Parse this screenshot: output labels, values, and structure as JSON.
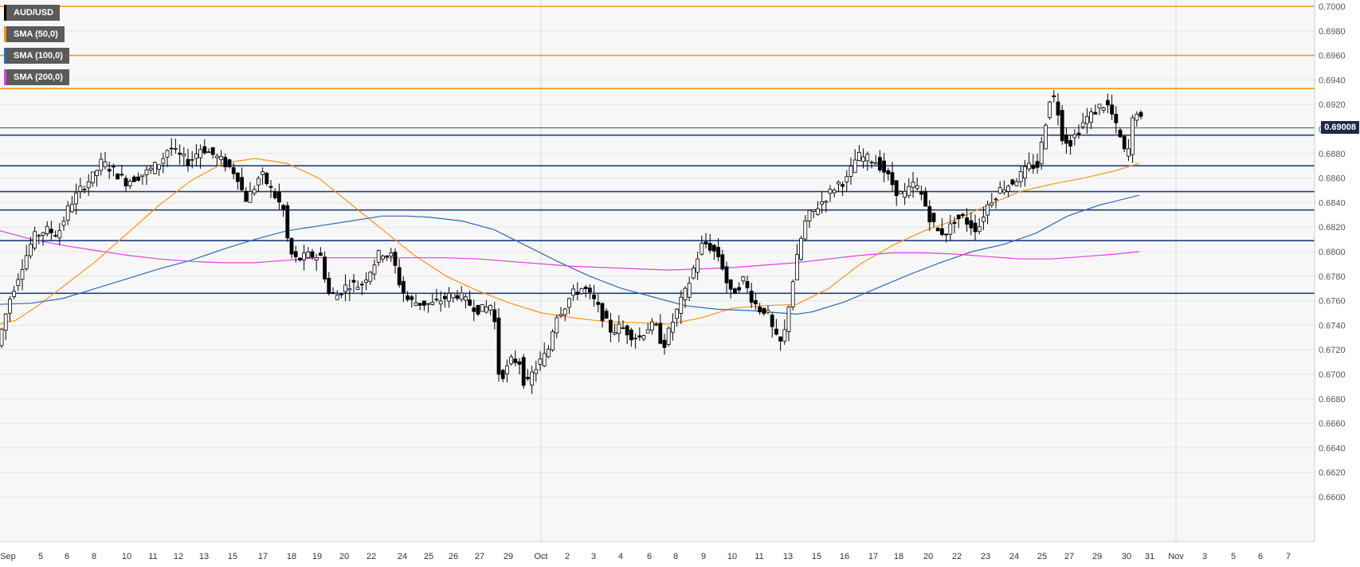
{
  "chart_data": {
    "type": "candlestick",
    "symbol": "AUD/USD",
    "last_price": "0.69008",
    "ylim": [
      0.6592,
      0.7004
    ],
    "y_ticks": [
      "0.7000",
      "0.6980",
      "0.6960",
      "0.6940",
      "0.6920",
      "0.6900",
      "0.6880",
      "0.6860",
      "0.6840",
      "0.6820",
      "0.6800",
      "0.6780",
      "0.6760",
      "0.6740",
      "0.6720",
      "0.6700",
      "0.6680",
      "0.6660",
      "0.6640",
      "0.6620",
      "0.6600"
    ],
    "x_ticks": [
      "Sep",
      "5",
      "6",
      "8",
      "10",
      "11",
      "12",
      "13",
      "15",
      "17",
      "18",
      "19",
      "20",
      "22",
      "24",
      "25",
      "26",
      "27",
      "29",
      "Oct",
      "2",
      "3",
      "4",
      "6",
      "8",
      "9",
      "10",
      "11",
      "13",
      "15",
      "16",
      "17",
      "18",
      "20",
      "22",
      "23",
      "24",
      "25",
      "27",
      "29",
      "30",
      "31",
      "Nov",
      "3",
      "5",
      "6",
      "7"
    ],
    "horizontal_levels": {
      "resistance": [
        0.7,
        0.696,
        0.6933
      ],
      "support": [
        0.6895,
        0.687,
        0.6849,
        0.6834,
        0.6809,
        0.6766
      ],
      "current": 0.6901
    },
    "series": [
      {
        "name": "SMA (50,0)",
        "color": "#f7941d",
        "points": [
          [
            0,
            0.6741
          ],
          [
            20,
            0.6744
          ],
          [
            50,
            0.6757
          ],
          [
            80,
            0.6772
          ],
          [
            120,
            0.6792
          ],
          [
            160,
            0.6815
          ],
          [
            200,
            0.6838
          ],
          [
            240,
            0.6858
          ],
          [
            280,
            0.6872
          ],
          [
            320,
            0.6876
          ],
          [
            360,
            0.6872
          ],
          [
            400,
            0.686
          ],
          [
            440,
            0.6839
          ],
          [
            480,
            0.6818
          ],
          [
            520,
            0.6797
          ],
          [
            560,
            0.678
          ],
          [
            600,
            0.6768
          ],
          [
            640,
            0.6758
          ],
          [
            680,
            0.675
          ],
          [
            720,
            0.6746
          ],
          [
            760,
            0.6743
          ],
          [
            800,
            0.6742
          ],
          [
            840,
            0.6741
          ],
          [
            880,
            0.6746
          ],
          [
            920,
            0.6754
          ],
          [
            960,
            0.6756
          ],
          [
            1000,
            0.6757
          ],
          [
            1040,
            0.677
          ],
          [
            1080,
            0.679
          ],
          [
            1120,
            0.6805
          ],
          [
            1160,
            0.6817
          ],
          [
            1200,
            0.6826
          ],
          [
            1240,
            0.6838
          ],
          [
            1280,
            0.6849
          ],
          [
            1320,
            0.6855
          ],
          [
            1360,
            0.686
          ],
          [
            1400,
            0.6866
          ],
          [
            1430,
            0.6872
          ]
        ]
      },
      {
        "name": "SMA (100,0)",
        "color": "#2f6bb3",
        "points": [
          [
            0,
            0.6757
          ],
          [
            40,
            0.6758
          ],
          [
            80,
            0.6762
          ],
          [
            120,
            0.677
          ],
          [
            160,
            0.6778
          ],
          [
            200,
            0.6786
          ],
          [
            240,
            0.6793
          ],
          [
            280,
            0.6802
          ],
          [
            320,
            0.681
          ],
          [
            360,
            0.6817
          ],
          [
            400,
            0.6821
          ],
          [
            440,
            0.6825
          ],
          [
            480,
            0.6829
          ],
          [
            510,
            0.6829
          ],
          [
            540,
            0.6828
          ],
          [
            580,
            0.6825
          ],
          [
            620,
            0.6818
          ],
          [
            660,
            0.6805
          ],
          [
            700,
            0.6792
          ],
          [
            740,
            0.678
          ],
          [
            780,
            0.677
          ],
          [
            820,
            0.6763
          ],
          [
            860,
            0.6756
          ],
          [
            900,
            0.6753
          ],
          [
            940,
            0.6752
          ],
          [
            980,
            0.675
          ],
          [
            1000,
            0.6749
          ],
          [
            1020,
            0.6751
          ],
          [
            1060,
            0.6759
          ],
          [
            1100,
            0.677
          ],
          [
            1140,
            0.6781
          ],
          [
            1180,
            0.6791
          ],
          [
            1220,
            0.68
          ],
          [
            1260,
            0.6806
          ],
          [
            1300,
            0.6815
          ],
          [
            1340,
            0.6829
          ],
          [
            1380,
            0.6838
          ],
          [
            1430,
            0.6846
          ]
        ]
      },
      {
        "name": "SMA (200,0)",
        "color": "#e040e0",
        "points": [
          [
            0,
            0.6817
          ],
          [
            40,
            0.681
          ],
          [
            80,
            0.6805
          ],
          [
            120,
            0.6801
          ],
          [
            160,
            0.6797
          ],
          [
            200,
            0.6794
          ],
          [
            240,
            0.6792
          ],
          [
            280,
            0.6791
          ],
          [
            320,
            0.6791
          ],
          [
            360,
            0.6793
          ],
          [
            400,
            0.6795
          ],
          [
            440,
            0.6795
          ],
          [
            480,
            0.6795
          ],
          [
            520,
            0.6795
          ],
          [
            560,
            0.6795
          ],
          [
            600,
            0.6794
          ],
          [
            640,
            0.6792
          ],
          [
            680,
            0.679
          ],
          [
            720,
            0.6788
          ],
          [
            760,
            0.6787
          ],
          [
            800,
            0.6786
          ],
          [
            840,
            0.6785
          ],
          [
            880,
            0.6786
          ],
          [
            920,
            0.6787
          ],
          [
            960,
            0.6789
          ],
          [
            1000,
            0.6791
          ],
          [
            1040,
            0.6794
          ],
          [
            1080,
            0.6797
          ],
          [
            1120,
            0.6799
          ],
          [
            1160,
            0.6799
          ],
          [
            1200,
            0.6798
          ],
          [
            1240,
            0.6796
          ],
          [
            1280,
            0.6794
          ],
          [
            1320,
            0.6794
          ],
          [
            1360,
            0.6796
          ],
          [
            1400,
            0.6798
          ],
          [
            1430,
            0.68
          ]
        ]
      }
    ],
    "candle_path": [
      [
        0,
        0.6725
      ],
      [
        15,
        0.6762
      ],
      [
        30,
        0.6788
      ],
      [
        45,
        0.6812
      ],
      [
        60,
        0.6818
      ],
      [
        75,
        0.6814
      ],
      [
        90,
        0.6838
      ],
      [
        105,
        0.6852
      ],
      [
        120,
        0.6862
      ],
      [
        130,
        0.6873
      ],
      [
        145,
        0.6866
      ],
      [
        160,
        0.6857
      ],
      [
        175,
        0.6861
      ],
      [
        190,
        0.6866
      ],
      [
        205,
        0.6874
      ],
      [
        215,
        0.6886
      ],
      [
        225,
        0.6879
      ],
      [
        240,
        0.6873
      ],
      [
        255,
        0.6885
      ],
      [
        270,
        0.6879
      ],
      [
        285,
        0.6872
      ],
      [
        300,
        0.6863
      ],
      [
        310,
        0.6842
      ],
      [
        320,
        0.685
      ],
      [
        330,
        0.6864
      ],
      [
        345,
        0.6848
      ],
      [
        360,
        0.6832
      ],
      [
        365,
        0.68
      ],
      [
        375,
        0.6793
      ],
      [
        390,
        0.6797
      ],
      [
        405,
        0.6796
      ],
      [
        415,
        0.6766
      ],
      [
        425,
        0.6764
      ],
      [
        440,
        0.6774
      ],
      [
        455,
        0.6772
      ],
      [
        470,
        0.6788
      ],
      [
        480,
        0.68
      ],
      [
        495,
        0.6796
      ],
      [
        505,
        0.6772
      ],
      [
        515,
        0.676
      ],
      [
        530,
        0.6758
      ],
      [
        545,
        0.6757
      ],
      [
        560,
        0.6762
      ],
      [
        575,
        0.6766
      ],
      [
        590,
        0.6758
      ],
      [
        605,
        0.6752
      ],
      [
        615,
        0.6755
      ],
      [
        622,
        0.6758
      ],
      [
        627,
        0.6702
      ],
      [
        635,
        0.67
      ],
      [
        645,
        0.6712
      ],
      [
        655,
        0.671
      ],
      [
        662,
        0.6688
      ],
      [
        670,
        0.67
      ],
      [
        680,
        0.671
      ],
      [
        690,
        0.6718
      ],
      [
        700,
        0.6748
      ],
      [
        710,
        0.6754
      ],
      [
        720,
        0.6765
      ],
      [
        735,
        0.6771
      ],
      [
        750,
        0.6758
      ],
      [
        760,
        0.6746
      ],
      [
        770,
        0.6735
      ],
      [
        782,
        0.6739
      ],
      [
        795,
        0.6732
      ],
      [
        805,
        0.673
      ],
      [
        815,
        0.6738
      ],
      [
        825,
        0.674
      ],
      [
        835,
        0.6722
      ],
      [
        845,
        0.674
      ],
      [
        855,
        0.6756
      ],
      [
        865,
        0.677
      ],
      [
        875,
        0.679
      ],
      [
        885,
        0.6808
      ],
      [
        895,
        0.6803
      ],
      [
        905,
        0.6796
      ],
      [
        912,
        0.6783
      ],
      [
        918,
        0.6765
      ],
      [
        928,
        0.677
      ],
      [
        935,
        0.6778
      ],
      [
        945,
        0.6763
      ],
      [
        955,
        0.6753
      ],
      [
        965,
        0.6752
      ],
      [
        975,
        0.673
      ],
      [
        985,
        0.6724
      ],
      [
        992,
        0.6755
      ],
      [
        1000,
        0.6785
      ],
      [
        1008,
        0.681
      ],
      [
        1015,
        0.6828
      ],
      [
        1025,
        0.6834
      ],
      [
        1040,
        0.6845
      ],
      [
        1055,
        0.6856
      ],
      [
        1065,
        0.6858
      ],
      [
        1078,
        0.6878
      ],
      [
        1090,
        0.6876
      ],
      [
        1100,
        0.6875
      ],
      [
        1110,
        0.6868
      ],
      [
        1120,
        0.6858
      ],
      [
        1130,
        0.6847
      ],
      [
        1140,
        0.6847
      ],
      [
        1150,
        0.6856
      ],
      [
        1160,
        0.6845
      ],
      [
        1170,
        0.6827
      ],
      [
        1180,
        0.6816
      ],
      [
        1192,
        0.6816
      ],
      [
        1200,
        0.6826
      ],
      [
        1210,
        0.6828
      ],
      [
        1220,
        0.6822
      ],
      [
        1230,
        0.6818
      ],
      [
        1240,
        0.6836
      ],
      [
        1250,
        0.6845
      ],
      [
        1260,
        0.6852
      ],
      [
        1272,
        0.6856
      ],
      [
        1285,
        0.6863
      ],
      [
        1295,
        0.687
      ],
      [
        1305,
        0.687
      ],
      [
        1312,
        0.6895
      ],
      [
        1320,
        0.6925
      ],
      [
        1328,
        0.6925
      ],
      [
        1335,
        0.6895
      ],
      [
        1345,
        0.6888
      ],
      [
        1355,
        0.6898
      ],
      [
        1365,
        0.6908
      ],
      [
        1375,
        0.6913
      ],
      [
        1385,
        0.692
      ],
      [
        1395,
        0.6918
      ],
      [
        1402,
        0.6904
      ],
      [
        1410,
        0.689
      ],
      [
        1417,
        0.6874
      ],
      [
        1425,
        0.691
      ],
      [
        1432,
        0.6918
      ],
      [
        1436,
        0.6901
      ]
    ]
  },
  "legend": [
    {
      "label": "AUD/USD",
      "color": "#000000"
    },
    {
      "label": "SMA (50,0)",
      "color": "#f7941d"
    },
    {
      "label": "SMA (100,0)",
      "color": "#2f6bb3"
    },
    {
      "label": "SMA (200,0)",
      "color": "#e040e0"
    }
  ],
  "price_badge": "0.69008",
  "colors": {
    "background": "#f7f7f7",
    "grid": "#e6e6e6",
    "candle_up": "#ffffff",
    "candle_down": "#000000",
    "resistance": "#f7941d",
    "support": "#1f3f7f",
    "current_line": "#4a5a78"
  }
}
